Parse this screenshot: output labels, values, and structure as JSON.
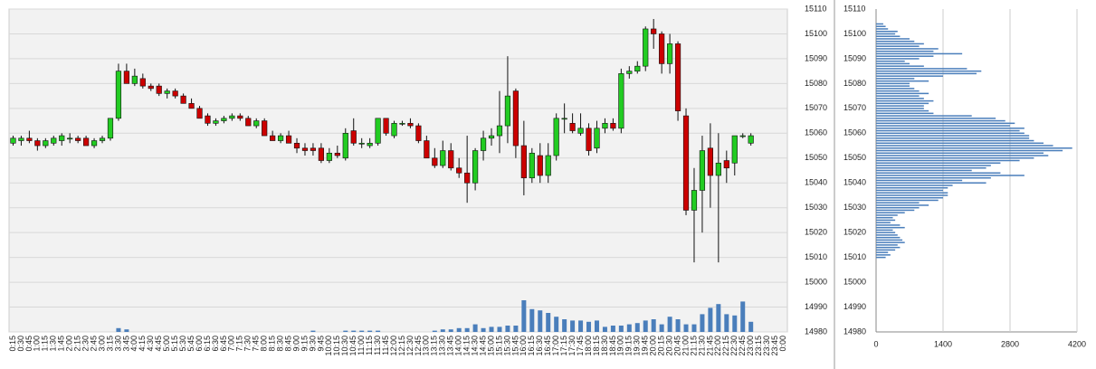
{
  "chart_data": {
    "type": "candlestick",
    "categories": [
      "0:15",
      "0:30",
      "0:45",
      "1:00",
      "1:15",
      "1:30",
      "1:45",
      "2:00",
      "2:15",
      "2:30",
      "2:45",
      "3:00",
      "3:15",
      "3:30",
      "3:45",
      "4:00",
      "4:15",
      "4:30",
      "4:45",
      "5:00",
      "5:15",
      "5:30",
      "5:45",
      "6:00",
      "6:15",
      "6:30",
      "6:45",
      "7:00",
      "7:15",
      "7:30",
      "7:45",
      "8:00",
      "8:15",
      "8:30",
      "8:45",
      "9:00",
      "9:15",
      "9:30",
      "9:45",
      "10:00",
      "10:15",
      "10:30",
      "10:45",
      "11:00",
      "11:15",
      "11:30",
      "11:45",
      "12:00",
      "12:15",
      "12:30",
      "12:45",
      "13:00",
      "13:15",
      "13:30",
      "13:45",
      "14:00",
      "14:15",
      "14:30",
      "14:45",
      "15:00",
      "15:15",
      "15:30",
      "15:45",
      "16:00",
      "16:15",
      "16:30",
      "16:45",
      "17:00",
      "17:15",
      "17:30",
      "17:45",
      "18:00",
      "18:15",
      "18:30",
      "18:45",
      "19:00",
      "19:15",
      "19:30",
      "19:45",
      "20:00",
      "20:15",
      "20:30",
      "20:45",
      "21:00",
      "21:15",
      "21:30",
      "21:45",
      "22:00",
      "22:15",
      "22:30",
      "22:45",
      "23:00",
      "23:15",
      "23:30",
      "23:45",
      "0:00"
    ],
    "open": [
      15056,
      15057,
      15058,
      15057,
      15055,
      15056,
      15057,
      15058,
      15058,
      15058,
      15055,
      15057,
      15058,
      15066,
      15085,
      15080,
      15082,
      15079,
      15079,
      15076,
      15077,
      15075,
      15072,
      15070,
      15067,
      15064,
      15065,
      15066,
      15067,
      15066,
      15063,
      15065,
      15059,
      15057,
      15059,
      15056,
      15054,
      15054,
      15054,
      15049,
      15052,
      15050,
      15061,
      15056,
      15055,
      15056,
      15066,
      15059,
      15064,
      15064,
      15063,
      15057,
      15050,
      15047,
      15053,
      15046,
      15044,
      15040,
      15053,
      15058,
      15059,
      15063,
      15077,
      15055,
      15042,
      15051,
      15043,
      15051,
      15066,
      15064,
      15060,
      15062,
      15054,
      15062,
      15064,
      15062,
      15084,
      15085,
      15087,
      15102,
      15100,
      15088,
      15096,
      15067,
      15029,
      15037,
      15054,
      15043,
      15049,
      15048,
      15059,
      15056,
      null,
      null,
      null,
      null
    ],
    "high": [
      15059,
      15059,
      15061,
      15058,
      15058,
      15059,
      15060,
      15060,
      15059,
      15059,
      15058,
      15059,
      15066,
      15088,
      15088,
      15086,
      15084,
      15080,
      15080,
      15078,
      15078,
      15076,
      15074,
      15071,
      15068,
      15066,
      15067,
      15068,
      15068,
      15067,
      15066,
      15066,
      15061,
      15060,
      15061,
      15058,
      15056,
      15056,
      15056,
      15054,
      15055,
      15062,
      15066,
      15058,
      15058,
      15066,
      15066,
      15065,
      15065,
      15066,
      15064,
      15059,
      15054,
      15057,
      15056,
      15050,
      15059,
      15054,
      15061,
      15062,
      15077,
      15091,
      15078,
      15065,
      15054,
      15056,
      15056,
      15068,
      15072,
      15068,
      15068,
      15064,
      15065,
      15066,
      15066,
      15086,
      15087,
      15089,
      15103,
      15106,
      15101,
      15100,
      15097,
      15070,
      15046,
      15059,
      15064,
      15060,
      15053,
      15059,
      15060,
      15060,
      null,
      null,
      null,
      null
    ],
    "low": [
      15055,
      15055,
      15056,
      15053,
      15054,
      15055,
      15055,
      15056,
      15056,
      15055,
      15054,
      15056,
      15057,
      15065,
      15080,
      15079,
      15078,
      15077,
      15075,
      15074,
      15074,
      15072,
      15070,
      15066,
      15063,
      15063,
      15064,
      15065,
      15065,
      15063,
      15062,
      15059,
      15057,
      15056,
      15056,
      15052,
      15051,
      15051,
      15048,
      15048,
      15050,
      15049,
      15055,
      15054,
      15054,
      15055,
      15059,
      15058,
      15063,
      15062,
      15056,
      15050,
      15046,
      15046,
      15045,
      15042,
      15032,
      15037,
      15049,
      15055,
      15052,
      15056,
      15050,
      15035,
      15040,
      15040,
      15040,
      15049,
      15060,
      15060,
      15059,
      15051,
      15052,
      15060,
      15061,
      15060,
      15082,
      15084,
      15085,
      15094,
      15084,
      15084,
      15065,
      15027,
      15008,
      15020,
      15030,
      15008,
      15040,
      15043,
      15058,
      15055,
      null,
      null,
      null,
      null
    ],
    "close": [
      15058,
      15058,
      15057,
      15055,
      15057,
      15058,
      15059,
      15058,
      15057,
      15055,
      15057,
      15058,
      15066,
      15085,
      15080,
      15083,
      15079,
      15078,
      15076,
      15077,
      15075,
      15072,
      15070,
      15066,
      15064,
      15065,
      15066,
      15067,
      15066,
      15063,
      15065,
      15059,
      15057,
      15059,
      15056,
      15054,
      15053,
      15053,
      15049,
      15052,
      15051,
      15060,
      15056,
      15056,
      15056,
      15066,
      15060,
      15064,
      15064,
      15063,
      15057,
      15050,
      15047,
      15053,
      15046,
      15044,
      15040,
      15053,
      15058,
      15059,
      15063,
      15075,
      15055,
      15042,
      15052,
      15043,
      15051,
      15066,
      15066,
      15061,
      15062,
      15053,
      15062,
      15064,
      15062,
      15084,
      15085,
      15087,
      15102,
      15100,
      15088,
      15096,
      15069,
      15029,
      15037,
      15053,
      15043,
      15048,
      15046,
      15059,
      15059,
      15059,
      null,
      null,
      null,
      null
    ],
    "volume": [
      0,
      0,
      0,
      0,
      0,
      0,
      0,
      0,
      0,
      0,
      0,
      0,
      0,
      3,
      2,
      0,
      0,
      0,
      0,
      0,
      0,
      0,
      0,
      0,
      0,
      0,
      0,
      0,
      0,
      0,
      0,
      0,
      0,
      0,
      0,
      0,
      0,
      1,
      0,
      0,
      0,
      1,
      1,
      1,
      1,
      1,
      0,
      0,
      0,
      0,
      0,
      0,
      1,
      2,
      2,
      3,
      3,
      6,
      3,
      4,
      4,
      5,
      5,
      25,
      18,
      17,
      15,
      12,
      10,
      9,
      9,
      8,
      9,
      4,
      5,
      5,
      6,
      7,
      9,
      10,
      6,
      12,
      10,
      6,
      6,
      14,
      19,
      22,
      14,
      13,
      24,
      8,
      0,
      0,
      0,
      0
    ],
    "up_color": "#22cc22",
    "down_color": "#cc0000",
    "volume_color": "#4a7ebb",
    "ylim": [
      14980,
      15110
    ],
    "yticks": [
      14980,
      14990,
      15000,
      15010,
      15020,
      15030,
      15040,
      15050,
      15060,
      15070,
      15080,
      15090,
      15100,
      15110
    ],
    "grid": true,
    "profile": {
      "prices": [
        15010,
        15011,
        15012,
        15013,
        15014,
        15015,
        15016,
        15017,
        15018,
        15019,
        15020,
        15021,
        15022,
        15023,
        15024,
        15025,
        15026,
        15027,
        15028,
        15029,
        15030,
        15031,
        15032,
        15033,
        15034,
        15035,
        15036,
        15037,
        15038,
        15039,
        15040,
        15041,
        15042,
        15043,
        15044,
        15045,
        15046,
        15047,
        15048,
        15049,
        15050,
        15051,
        15052,
        15053,
        15054,
        15055,
        15056,
        15057,
        15058,
        15059,
        15060,
        15061,
        15062,
        15063,
        15064,
        15065,
        15066,
        15067,
        15068,
        15069,
        15070,
        15071,
        15072,
        15073,
        15074,
        15075,
        15076,
        15077,
        15078,
        15079,
        15080,
        15081,
        15082,
        15083,
        15084,
        15085,
        15086,
        15087,
        15088,
        15089,
        15090,
        15091,
        15092,
        15093,
        15094,
        15095,
        15096,
        15097,
        15098,
        15099,
        15100,
        15101,
        15102,
        15103,
        15104
      ],
      "values": [
        200,
        300,
        250,
        400,
        500,
        450,
        600,
        550,
        500,
        450,
        400,
        350,
        600,
        500,
        300,
        400,
        350,
        450,
        600,
        800,
        900,
        1100,
        900,
        1300,
        1400,
        1500,
        1500,
        1400,
        1500,
        1600,
        2300,
        1800,
        2400,
        3100,
        2600,
        2000,
        2300,
        2400,
        2600,
        3000,
        3300,
        3600,
        3500,
        3900,
        4100,
        3700,
        3500,
        3300,
        3200,
        3200,
        3100,
        3000,
        3100,
        2800,
        2900,
        2700,
        2500,
        2000,
        1200,
        1100,
        1000,
        1000,
        1100,
        1200,
        1000,
        900,
        1100,
        900,
        800,
        700,
        700,
        1100,
        800,
        1400,
        2100,
        2200,
        1900,
        1000,
        700,
        600,
        900,
        1200,
        1800,
        1200,
        1300,
        900,
        1000,
        800,
        700,
        500,
        400,
        450,
        250,
        200,
        150
      ],
      "color": "#4a7ebb",
      "xlim": [
        0,
        4200
      ],
      "xticks": [
        0,
        1400,
        2800,
        4200
      ]
    }
  }
}
